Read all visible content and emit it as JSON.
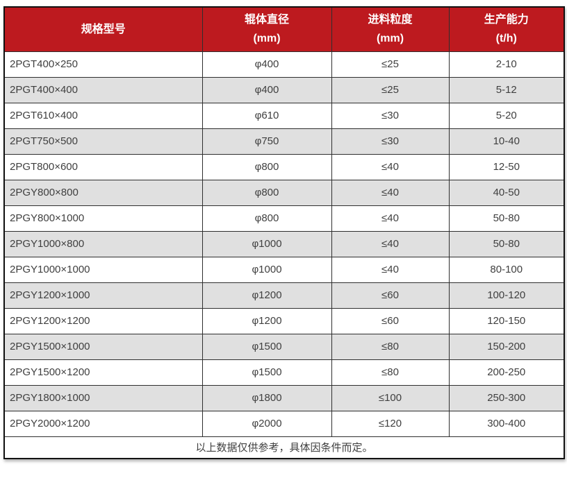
{
  "colors": {
    "page_bg": "#ffffff",
    "header_bg": "#bd1a1f",
    "header_text": "#ffffff",
    "row_bg": "#ffffff",
    "row_alt_bg": "#e0e0e0",
    "border": "#2e2e2e",
    "outer_border": "#111111",
    "cell_text": "#3f3f3f"
  },
  "chart_data": {
    "type": "table",
    "columns": [
      {
        "line1": "规格型号",
        "line2": ""
      },
      {
        "line1": "辊体直径",
        "line2": "(mm)"
      },
      {
        "line1": "进料粒度",
        "line2": "(mm)"
      },
      {
        "line1": "生产能力",
        "line2": "(t/h)"
      }
    ],
    "rows": [
      [
        "2PGT400×250",
        "φ400",
        "≤25",
        "2-10"
      ],
      [
        "2PGT400×400",
        "φ400",
        "≤25",
        "5-12"
      ],
      [
        "2PGT610×400",
        "φ610",
        "≤30",
        "5-20"
      ],
      [
        "2PGT750×500",
        "φ750",
        "≤30",
        "10-40"
      ],
      [
        "2PGT800×600",
        "φ800",
        "≤40",
        "12-50"
      ],
      [
        "2PGY800×800",
        "φ800",
        "≤40",
        "40-50"
      ],
      [
        "2PGY800×1000",
        "φ800",
        "≤40",
        "50-80"
      ],
      [
        "2PGY1000×800",
        "φ1000",
        "≤40",
        "50-80"
      ],
      [
        "2PGY1000×1000",
        "φ1000",
        "≤40",
        "80-100"
      ],
      [
        "2PGY1200×1000",
        "φ1200",
        "≤60",
        "100-120"
      ],
      [
        "2PGY1200×1200",
        "φ1200",
        "≤60",
        "120-150"
      ],
      [
        "2PGY1500×1000",
        "φ1500",
        "≤80",
        "150-200"
      ],
      [
        "2PGY1500×1200",
        "φ1500",
        "≤80",
        "200-250"
      ],
      [
        "2PGY1800×1000",
        "φ1800",
        "≤100",
        "250-300"
      ],
      [
        "2PGY2000×1200",
        "φ2000",
        "≤120",
        "300-400"
      ]
    ],
    "footer_note": "以上数据仅供参考，具体因条件而定。"
  }
}
